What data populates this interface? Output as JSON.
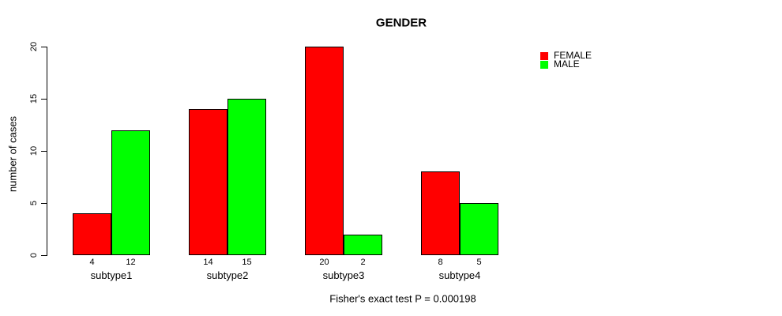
{
  "chart_data": {
    "type": "bar",
    "title": "GENDER",
    "xlabel": "",
    "ylabel": "number of cases",
    "categories": [
      "subtype1",
      "subtype2",
      "subtype3",
      "subtype4"
    ],
    "series": [
      {
        "name": "FEMALE",
        "color": "#ff0000",
        "values": [
          4,
          14,
          20,
          8
        ]
      },
      {
        "name": "MALE",
        "color": "#00ff00",
        "values": [
          12,
          15,
          2,
          5
        ]
      }
    ],
    "yticks": [
      0,
      5,
      10,
      15,
      20
    ],
    "ylim": [
      0,
      20
    ],
    "grid": false,
    "bar_value_labels_shown": true,
    "legend_position": "top-right",
    "legend_entries": [
      "FEMALE",
      "MALE"
    ]
  },
  "annotation": "Fisher's exact test P = 0.000198",
  "colors": {
    "female": "#ff0000",
    "male": "#00ff00",
    "axis": "#000000",
    "background": "#ffffff"
  }
}
